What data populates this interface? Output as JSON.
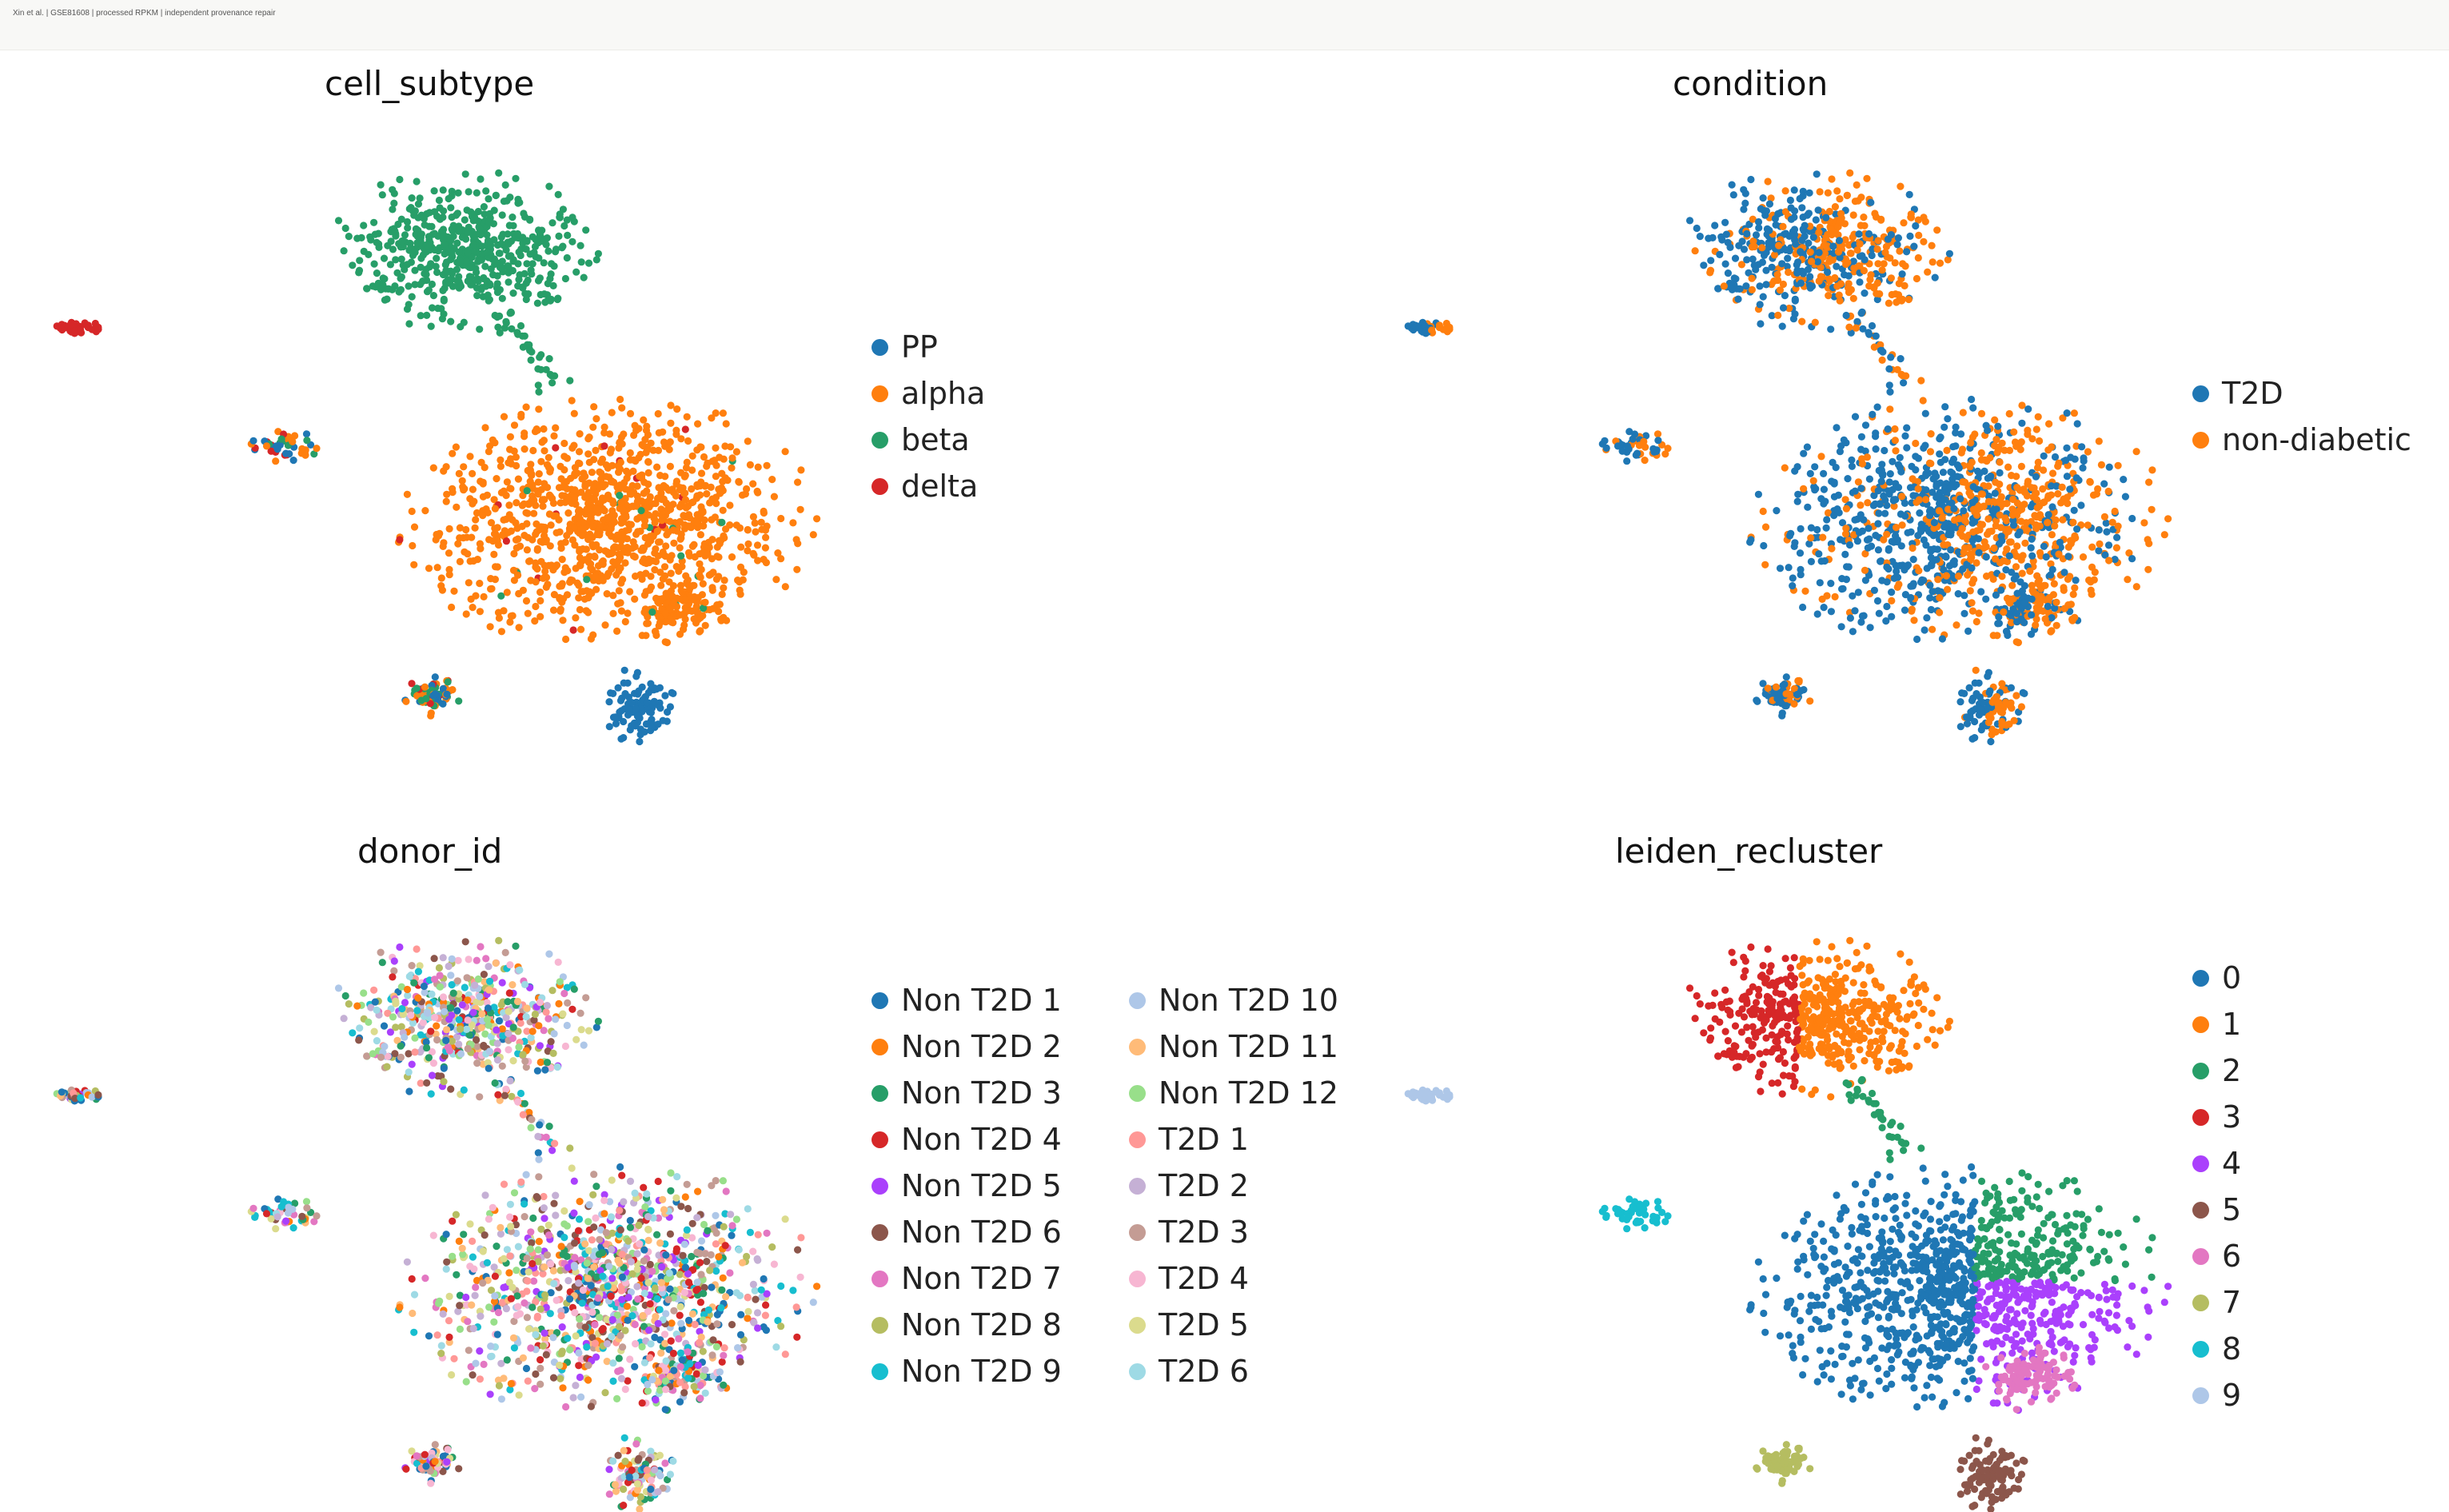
{
  "header": {
    "text": "Xin et al. | GSE81608 | processed RPKM | independent provenance repair"
  },
  "chart_data": [
    {
      "type": "scatter",
      "title": "cell_subtype",
      "xlabel": "",
      "ylabel": "",
      "axes": "off",
      "grid": "off",
      "legend": "right",
      "series": [
        {
          "name": "PP",
          "color": "#1f77b4"
        },
        {
          "name": "alpha",
          "color": "#ff7f0e"
        },
        {
          "name": "beta",
          "color": "#279e68"
        },
        {
          "name": "delta",
          "color": "#d62728"
        }
      ]
    },
    {
      "type": "scatter",
      "title": "condition",
      "xlabel": "",
      "ylabel": "",
      "axes": "off",
      "grid": "off",
      "legend": "right",
      "series": [
        {
          "name": "T2D",
          "color": "#1f77b4"
        },
        {
          "name": "non-diabetic",
          "color": "#ff7f0e"
        }
      ]
    },
    {
      "type": "scatter",
      "title": "donor_id",
      "xlabel": "",
      "ylabel": "",
      "axes": "off",
      "grid": "off",
      "legend": "right",
      "series": [
        {
          "name": "Non T2D 1",
          "color": "#1f77b4"
        },
        {
          "name": "Non T2D 2",
          "color": "#ff7f0e"
        },
        {
          "name": "Non T2D 3",
          "color": "#279e68"
        },
        {
          "name": "Non T2D 4",
          "color": "#d62728"
        },
        {
          "name": "Non T2D 5",
          "color": "#aa40fc"
        },
        {
          "name": "Non T2D 6",
          "color": "#8c564b"
        },
        {
          "name": "Non T2D 7",
          "color": "#e377c2"
        },
        {
          "name": "Non T2D 8",
          "color": "#b5bd61"
        },
        {
          "name": "Non T2D 9",
          "color": "#17becf"
        },
        {
          "name": "Non T2D 10",
          "color": "#aec7e8"
        },
        {
          "name": "Non T2D 11",
          "color": "#ffbb78"
        },
        {
          "name": "Non T2D 12",
          "color": "#98df8a"
        },
        {
          "name": "T2D 1",
          "color": "#ff9896"
        },
        {
          "name": "T2D 2",
          "color": "#c5b0d5"
        },
        {
          "name": "T2D 3",
          "color": "#c49c94"
        },
        {
          "name": "T2D 4",
          "color": "#f7b6d2"
        },
        {
          "name": "T2D 5",
          "color": "#dbdb8d"
        },
        {
          "name": "T2D 6",
          "color": "#9edae5"
        }
      ]
    },
    {
      "type": "scatter",
      "title": "leiden_recluster",
      "xlabel": "",
      "ylabel": "",
      "axes": "off",
      "grid": "off",
      "legend": "right",
      "series": [
        {
          "name": "0",
          "color": "#1f77b4"
        },
        {
          "name": "1",
          "color": "#ff7f0e"
        },
        {
          "name": "2",
          "color": "#279e68"
        },
        {
          "name": "3",
          "color": "#d62728"
        },
        {
          "name": "4",
          "color": "#aa40fc"
        },
        {
          "name": "5",
          "color": "#8c564b"
        },
        {
          "name": "6",
          "color": "#e377c2"
        },
        {
          "name": "7",
          "color": "#b5bd61"
        },
        {
          "name": "8",
          "color": "#17becf"
        },
        {
          "name": "9",
          "color": "#aec7e8"
        }
      ]
    }
  ]
}
